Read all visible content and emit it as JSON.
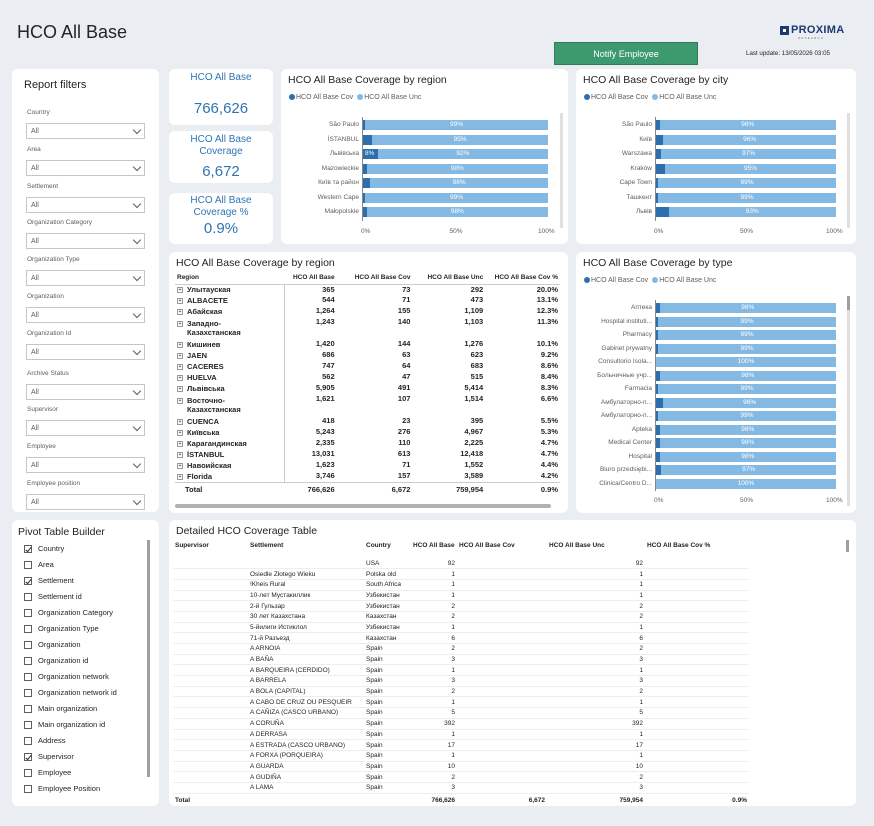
{
  "header": {
    "title": "HCO All Base",
    "notify_label": "Notify Employee",
    "last_update": "Last update: 13/05/2026 03:05",
    "logo_text": "PROXIMA",
    "logo_sub": "RESEARCH"
  },
  "filters": {
    "title": "Report filters",
    "items": [
      {
        "label": "Country",
        "value": "All"
      },
      {
        "label": "Area",
        "value": "All"
      },
      {
        "label": "Settlement",
        "value": "All"
      },
      {
        "label": "Organization Category",
        "value": "All"
      },
      {
        "label": "Organization Type",
        "value": "All"
      },
      {
        "label": "Organization",
        "value": "All"
      },
      {
        "label": "Organization Id",
        "value": "All"
      },
      {
        "label": "Archive Status",
        "value": "All"
      },
      {
        "label": "Supervisor",
        "value": "All"
      },
      {
        "label": "Employee",
        "value": "All"
      },
      {
        "label": "Employee position",
        "value": "All"
      }
    ]
  },
  "kpis": [
    {
      "label": "HCO All Base",
      "value": "766,626"
    },
    {
      "label": "HCO All Base Coverage",
      "value": "6,672"
    },
    {
      "label": "HCO All Base Coverage %",
      "value": "0.9%"
    }
  ],
  "legend": {
    "cov": "HCO All Base Cov",
    "unc": "HCO All Base Unc"
  },
  "colors": {
    "cov": "#2d6ead",
    "unc": "#84b9e4",
    "notify": "#3d9a6f"
  },
  "axis": [
    "0%",
    "50%",
    "100%"
  ],
  "region_chart": {
    "title": "HCO All Base Coverage by region",
    "chart_data": {
      "type": "bar",
      "orientation": "horizontal-stacked-100",
      "categories": [
        "São Paulo",
        "İSTANBUL",
        "Львівська",
        "Mazowieckie",
        "Київ та район",
        "Western Cape",
        "Małopolskie"
      ],
      "cov_pct": [
        1,
        5,
        8,
        2,
        4,
        1,
        2
      ],
      "unc_labels": [
        "99%",
        "95%",
        "92%",
        "98%",
        "96%",
        "99%",
        "98%"
      ],
      "cov_labels": [
        "",
        "",
        "8%",
        "",
        "",
        "",
        ""
      ]
    }
  },
  "city_chart": {
    "title": "HCO All Base Coverage by city",
    "chart_data": {
      "type": "bar",
      "orientation": "horizontal-stacked-100",
      "categories": [
        "São Paulo",
        "Київ",
        "Warszawa",
        "Kraków",
        "Cape Town",
        "Ташкент",
        "Львів"
      ],
      "cov_pct": [
        2,
        4,
        3,
        5,
        1,
        1,
        7
      ],
      "unc_labels": [
        "98%",
        "96%",
        "97%",
        "95%",
        "99%",
        "99%",
        "93%"
      ]
    }
  },
  "type_chart": {
    "title": "HCO All Base Coverage by type",
    "chart_data": {
      "type": "bar",
      "orientation": "horizontal-stacked-100",
      "categories": [
        "Аптека",
        "Hospital instituti...",
        "Pharmacy",
        "Gabinet prywatny",
        "Consultorio Isola...",
        "Больничные учр...",
        "Farmacia",
        "Амбулаторно-п...",
        "Амбулаторно-п...",
        "Apteka",
        "Medical Center",
        "Hospital",
        "Biuro przedsiębi...",
        "Clinica/Centro D..."
      ],
      "cov_pct": [
        2,
        1,
        1,
        1,
        0,
        2,
        1,
        4,
        1,
        2,
        2,
        2,
        3,
        0
      ],
      "unc_labels": [
        "98%",
        "99%",
        "99%",
        "99%",
        "100%",
        "98%",
        "99%",
        "96%",
        "99%",
        "98%",
        "98%",
        "98%",
        "97%",
        "100%"
      ]
    }
  },
  "matrix": {
    "title": "HCO All Base Coverage by region",
    "columns": [
      "Region",
      "HCO All Base",
      "HCO All Base Cov",
      "HCO All Base Unc",
      "HCO All Base Cov %"
    ],
    "rows": [
      [
        "Улытауская",
        "365",
        "73",
        "292",
        "20.0%"
      ],
      [
        "ALBACETE",
        "544",
        "71",
        "473",
        "13.1%"
      ],
      [
        "Абайская",
        "1,264",
        "155",
        "1,109",
        "12.3%"
      ],
      [
        "Западно-Казахстанская",
        "1,243",
        "140",
        "1,103",
        "11.3%"
      ],
      [
        "Кишинев",
        "1,420",
        "144",
        "1,276",
        "10.1%"
      ],
      [
        "JAEN",
        "686",
        "63",
        "623",
        "9.2%"
      ],
      [
        "CACERES",
        "747",
        "64",
        "683",
        "8.6%"
      ],
      [
        "HUELVA",
        "562",
        "47",
        "515",
        "8.4%"
      ],
      [
        "Львівська",
        "5,905",
        "491",
        "5,414",
        "8.3%"
      ],
      [
        "Восточно-Казахстанская",
        "1,621",
        "107",
        "1,514",
        "6.6%"
      ],
      [
        "CUENCA",
        "418",
        "23",
        "395",
        "5.5%"
      ],
      [
        "Київська",
        "5,243",
        "276",
        "4,967",
        "5.3%"
      ],
      [
        "Карагандинская",
        "2,335",
        "110",
        "2,225",
        "4.7%"
      ],
      [
        "İSTANBUL",
        "13,031",
        "613",
        "12,418",
        "4.7%"
      ],
      [
        "Навоийская",
        "1,623",
        "71",
        "1,552",
        "4.4%"
      ],
      [
        "Florida",
        "3,746",
        "157",
        "3,589",
        "4.2%"
      ]
    ],
    "total": [
      "Total",
      "766,626",
      "6,672",
      "759,954",
      "0.9%"
    ]
  },
  "pivot": {
    "title": "Pivot Table Builder",
    "items": [
      {
        "label": "Country",
        "checked": true
      },
      {
        "label": "Area",
        "checked": false
      },
      {
        "label": "Settlement",
        "checked": true
      },
      {
        "label": "Settlement id",
        "checked": false
      },
      {
        "label": "Organization Category",
        "checked": false
      },
      {
        "label": "Organization Type",
        "checked": false
      },
      {
        "label": "Organization",
        "checked": false
      },
      {
        "label": "Organization id",
        "checked": false
      },
      {
        "label": "Organization network",
        "checked": false
      },
      {
        "label": "Organization network id",
        "checked": false
      },
      {
        "label": "Main organization",
        "checked": false
      },
      {
        "label": "Main organization id",
        "checked": false
      },
      {
        "label": "Address",
        "checked": false
      },
      {
        "label": "Supervisor",
        "checked": true
      },
      {
        "label": "Employee",
        "checked": false
      },
      {
        "label": "Employee Position",
        "checked": false
      }
    ]
  },
  "detail": {
    "title": "Detailed HCO Coverage Table",
    "columns": [
      "Supervisor",
      "Settlement",
      "Country",
      "HCO All Base",
      "HCO All Base Cov",
      "HCO All Base Unc",
      "HCO All Base Cov %"
    ],
    "rows": [
      [
        "",
        "",
        "USA",
        "92",
        "",
        "92",
        ""
      ],
      [
        "",
        "Osiedle Złotego Wieku",
        "Polska old",
        "1",
        "",
        "1",
        ""
      ],
      [
        "",
        "!Kheis Rural",
        "South Africa",
        "1",
        "",
        "1",
        ""
      ],
      [
        "",
        "10-лет Мустакиллик",
        "Узбекистан",
        "1",
        "",
        "1",
        ""
      ],
      [
        "",
        "2-й Гульзар",
        "Узбекистан",
        "2",
        "",
        "2",
        ""
      ],
      [
        "",
        "30 лет Казахстана",
        "Казахстан",
        "2",
        "",
        "2",
        ""
      ],
      [
        "",
        "5-йилиги Истиклол",
        "Узбекистан",
        "1",
        "",
        "1",
        ""
      ],
      [
        "",
        "71-й Разъезд",
        "Казахстан",
        "6",
        "",
        "6",
        ""
      ],
      [
        "",
        "A ARNOIA",
        "Spain",
        "2",
        "",
        "2",
        ""
      ],
      [
        "",
        "A BAÑA",
        "Spain",
        "3",
        "",
        "3",
        ""
      ],
      [
        "",
        "A BARQUEIRA (CERDIDO)",
        "Spain",
        "1",
        "",
        "1",
        ""
      ],
      [
        "",
        "A BARRELA",
        "Spain",
        "3",
        "",
        "3",
        ""
      ],
      [
        "",
        "A BOLA (CAPITAL)",
        "Spain",
        "2",
        "",
        "2",
        ""
      ],
      [
        "",
        "A CABO DE CRUZ OU PESQUEIR",
        "Spain",
        "1",
        "",
        "1",
        ""
      ],
      [
        "",
        "A CAÑIZA (CASCO URBANO)",
        "Spain",
        "5",
        "",
        "5",
        ""
      ],
      [
        "",
        "A CORUÑA",
        "Spain",
        "392",
        "",
        "392",
        ""
      ],
      [
        "",
        "A DERRASA",
        "Spain",
        "1",
        "",
        "1",
        ""
      ],
      [
        "",
        "A ESTRADA (CASCO URBANO)",
        "Spain",
        "17",
        "",
        "17",
        ""
      ],
      [
        "",
        "A FORXA (PORQUEIRA)",
        "Spain",
        "1",
        "",
        "1",
        ""
      ],
      [
        "",
        "A GUARDA",
        "Spain",
        "10",
        "",
        "10",
        ""
      ],
      [
        "",
        "A GUDIÑA",
        "Spain",
        "2",
        "",
        "2",
        ""
      ],
      [
        "",
        "A LAMA",
        "Spain",
        "3",
        "",
        "3",
        ""
      ]
    ],
    "total": [
      "Total",
      "",
      "",
      "766,626",
      "6,672",
      "759,954",
      "0.9%"
    ]
  }
}
